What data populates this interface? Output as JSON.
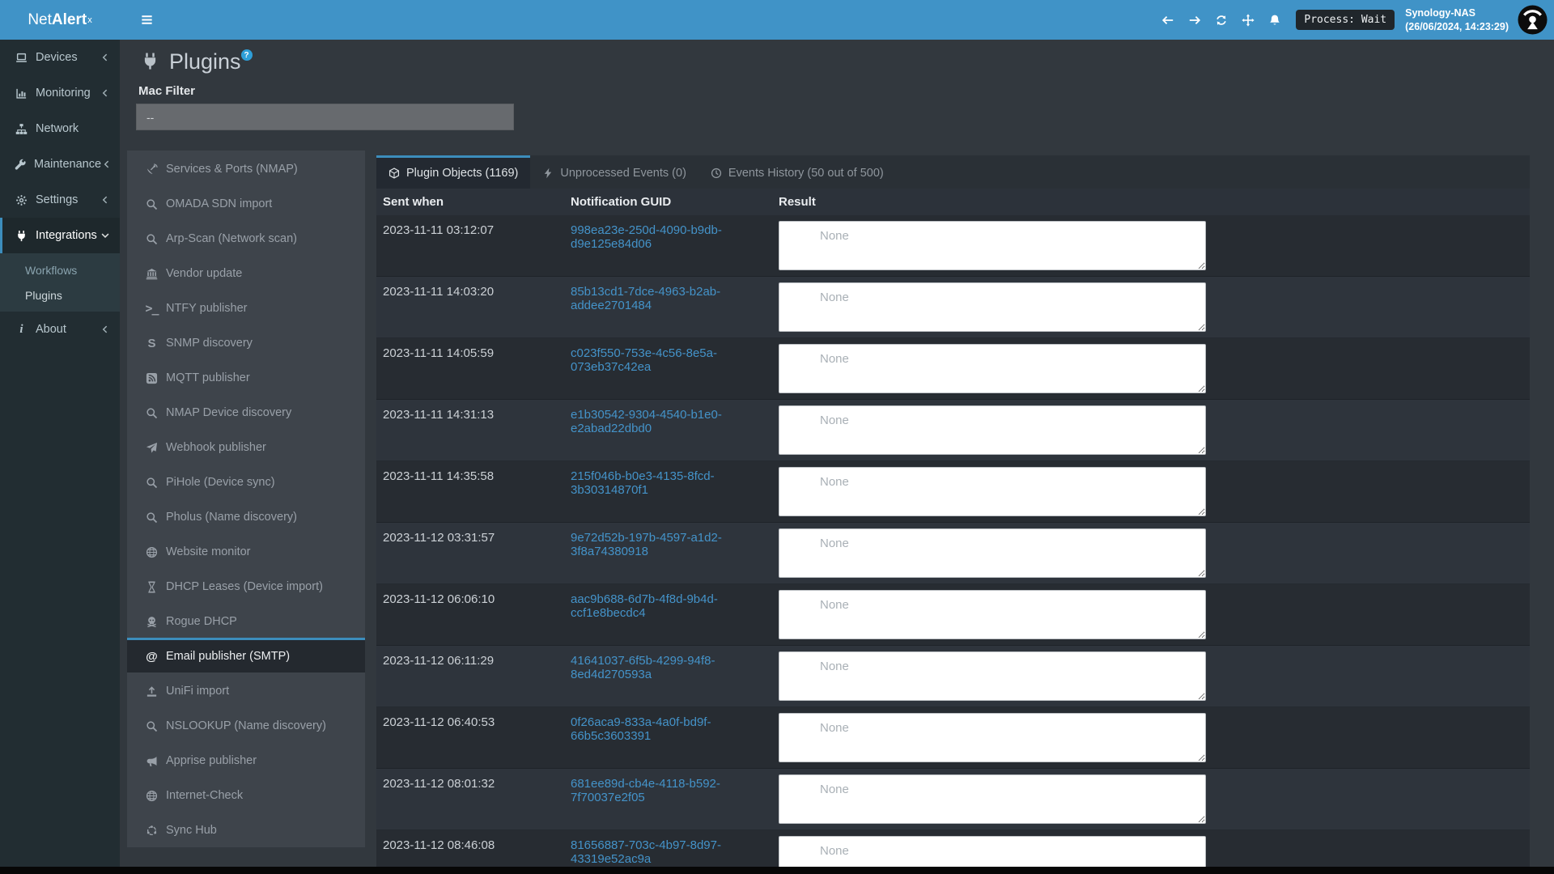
{
  "navbar": {
    "brand_prefix": "Net",
    "brand_bold": "Alert",
    "brand_sup": "x",
    "process_status": "Process: Wait",
    "host": "Synology-NAS",
    "host_time": "(26/06/2024, 14:23:29)",
    "icons": [
      "hamburger-icon",
      "arrow-left-icon",
      "arrow-right-icon",
      "sync-icon",
      "move-icon",
      "bell-icon"
    ]
  },
  "sidebar": {
    "items": [
      {
        "label": "Devices",
        "icon": "laptop-icon",
        "chevron": "left"
      },
      {
        "label": "Monitoring",
        "icon": "chart-icon",
        "chevron": "left"
      },
      {
        "label": "Network",
        "icon": "sitemap-icon",
        "chevron": null
      },
      {
        "label": "Maintenance",
        "icon": "wrench-icon",
        "chevron": "left"
      },
      {
        "label": "Settings",
        "icon": "gear-icon",
        "chevron": "left"
      },
      {
        "label": "Integrations",
        "icon": "plug-icon",
        "chevron": "down",
        "active": true,
        "children": [
          {
            "label": "Workflows",
            "active": false
          },
          {
            "label": "Plugins",
            "active": true
          }
        ]
      },
      {
        "label": "About",
        "icon": "info-icon",
        "chevron": "left"
      }
    ]
  },
  "page": {
    "title": "Plugins",
    "title_icon": "plug-icon",
    "help_badge": "?",
    "mac_filter_label": "Mac Filter",
    "mac_filter_value": "--"
  },
  "plugin_list": [
    {
      "label": "Services & Ports (NMAP)",
      "icon": "satellite-dish-icon",
      "selected": false
    },
    {
      "label": "OMADA SDN import",
      "icon": "search-icon",
      "selected": false
    },
    {
      "label": "Arp-Scan (Network scan)",
      "icon": "search-icon",
      "selected": false
    },
    {
      "label": "Vendor update",
      "icon": "bank-icon",
      "selected": false
    },
    {
      "label": "NTFY publisher",
      "icon": "terminal-icon",
      "selected": false
    },
    {
      "label": "SNMP discovery",
      "icon": "letter-s-icon",
      "selected": false
    },
    {
      "label": "MQTT publisher",
      "icon": "rss-icon",
      "selected": false
    },
    {
      "label": "NMAP Device discovery",
      "icon": "search-icon",
      "selected": false
    },
    {
      "label": "Webhook publisher",
      "icon": "send-icon",
      "selected": false
    },
    {
      "label": "PiHole (Device sync)",
      "icon": "search-icon",
      "selected": false
    },
    {
      "label": "Pholus (Name discovery)",
      "icon": "search-icon",
      "selected": false
    },
    {
      "label": "Website monitor",
      "icon": "globe-icon",
      "selected": false
    },
    {
      "label": "DHCP Leases (Device import)",
      "icon": "hourglass-icon",
      "selected": false
    },
    {
      "label": "Rogue DHCP",
      "icon": "skull-icon",
      "selected": false
    },
    {
      "label": "Email publisher (SMTP)",
      "icon": "at-icon",
      "selected": true
    },
    {
      "label": "UniFi import",
      "icon": "upload-icon",
      "selected": false
    },
    {
      "label": "NSLOOKUP (Name discovery)",
      "icon": "search-icon",
      "selected": false
    },
    {
      "label": "Apprise publisher",
      "icon": "bullhorn-icon",
      "selected": false
    },
    {
      "label": "Internet-Check",
      "icon": "globe-icon",
      "selected": false
    },
    {
      "label": "Sync Hub",
      "icon": "hub-icon",
      "selected": false
    }
  ],
  "tabs": [
    {
      "label": "Plugin Objects (1169)",
      "icon": "cube-icon",
      "active": true
    },
    {
      "label": "Unprocessed Events (0)",
      "icon": "bolt-icon",
      "active": false
    },
    {
      "label": "Events History (50 out of 500)",
      "icon": "clock-icon",
      "active": false
    }
  ],
  "table": {
    "columns": [
      "Sent when",
      "Notification GUID",
      "Result"
    ],
    "rows": [
      {
        "sent": "2023-11-11 03:12:07",
        "guid": "998ea23e-250d-4090-b9db-d9e125e84d06",
        "result": "None"
      },
      {
        "sent": "2023-11-11 14:03:20",
        "guid": "85b13cd1-7dce-4963-b2ab-addee2701484",
        "result": "None"
      },
      {
        "sent": "2023-11-11 14:05:59",
        "guid": "c023f550-753e-4c56-8e5a-073eb37c42ea",
        "result": "None"
      },
      {
        "sent": "2023-11-11 14:31:13",
        "guid": "e1b30542-9304-4540-b1e0-e2abad22dbd0",
        "result": "None"
      },
      {
        "sent": "2023-11-11 14:35:58",
        "guid": "215f046b-b0e3-4135-8fcd-3b30314870f1",
        "result": "None"
      },
      {
        "sent": "2023-11-12 03:31:57",
        "guid": "9e72d52b-197b-4597-a1d2-3f8a74380918",
        "result": "None"
      },
      {
        "sent": "2023-11-12 06:06:10",
        "guid": "aac9b688-6d7b-4f8d-9b4d-ccf1e8becdc4",
        "result": "None"
      },
      {
        "sent": "2023-11-12 06:11:29",
        "guid": "41641037-6f5b-4299-94f8-8ed4d270593a",
        "result": "None"
      },
      {
        "sent": "2023-11-12 06:40:53",
        "guid": "0f26aca9-833a-4a0f-bd9f-66b5c3603391",
        "result": "None"
      },
      {
        "sent": "2023-11-12 08:01:32",
        "guid": "681ee89d-cb4e-4118-b592-7f70037e2f05",
        "result": "None"
      },
      {
        "sent": "2023-11-12 08:46:08",
        "guid": "81656887-703c-4b97-8d97-43319e52ac9a",
        "result": "None"
      }
    ]
  },
  "colors": {
    "navbar_blue": "#4093c7",
    "accent_blue": "#3c8dbc",
    "link_blue": "#4493c9",
    "sidebar_dark": "#222d32",
    "panel_gray": "#3e444b",
    "content_bg": "#32383e"
  }
}
